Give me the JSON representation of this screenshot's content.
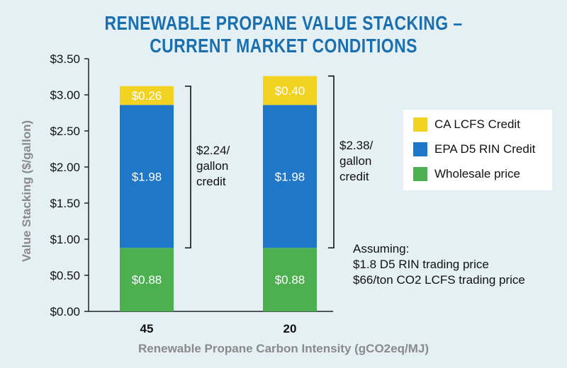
{
  "chart_data": {
    "type": "bar",
    "stacked": true,
    "title": "RENEWABLE PROPANE VALUE STACKING –\nCURRENT MARKET CONDITIONS",
    "title_lines": [
      "RENEWABLE PROPANE VALUE STACKING –",
      "CURRENT MARKET CONDITIONS"
    ],
    "categories": [
      "45",
      "20"
    ],
    "xlabel": "Renewable Propane Carbon Intensity (gCO2eq/MJ)",
    "ylabel": "Value Stacking ($/gallon)",
    "ylim": [
      0,
      3.5
    ],
    "yticks": [
      "$0.00",
      "$0.50",
      "$1.00",
      "$1.50",
      "$2.00",
      "$2.50",
      "$3.00",
      "$3.50"
    ],
    "ytick_values": [
      0,
      0.5,
      1.0,
      1.5,
      2.0,
      2.5,
      3.0,
      3.5
    ],
    "series": [
      {
        "name": "Wholesale price",
        "values": [
          0.88,
          0.88
        ],
        "labels": [
          "$0.88",
          "$0.88"
        ],
        "color": "#4caf50"
      },
      {
        "name": "EPA D5 RIN Credit",
        "values": [
          1.98,
          1.98
        ],
        "labels": [
          "$1.98",
          "$1.98"
        ],
        "color": "#1f77c9"
      },
      {
        "name": "CA LCFS Credit",
        "values": [
          0.26,
          0.4
        ],
        "labels": [
          "$0.26",
          "$0.40"
        ],
        "color": "#f2d321"
      }
    ],
    "annotations": [
      {
        "category": "45",
        "lines": [
          "$2.24/",
          "gallon",
          "credit"
        ]
      },
      {
        "category": "20",
        "lines": [
          "$2.38/",
          "gallon",
          "credit"
        ]
      }
    ],
    "legend": {
      "position": "right",
      "entries": [
        {
          "label": "CA LCFS Credit",
          "color": "#f2d321"
        },
        {
          "label": "EPA D5 RIN Credit",
          "color": "#1f77c9"
        },
        {
          "label": "Wholesale price",
          "color": "#4caf50"
        }
      ]
    },
    "note": [
      "Assuming:",
      "$1.8 D5 RIN trading price",
      "$66/ton CO2 LCFS trading price"
    ],
    "grid": false
  }
}
